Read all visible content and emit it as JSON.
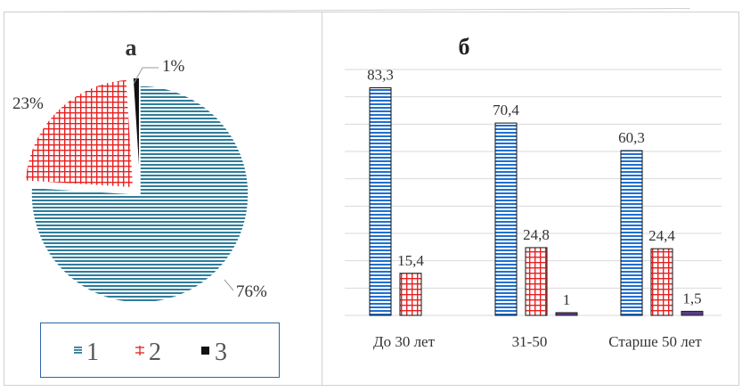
{
  "charts": [
    {
      "type": "pie",
      "title": "а",
      "categories": [
        "1",
        "2",
        "3"
      ],
      "values": [
        76,
        23,
        1
      ],
      "value_labels": [
        "76%",
        "23%",
        "1%"
      ],
      "legend": [
        "1",
        "2",
        "3"
      ],
      "legend_placement": "bottom",
      "colors": [
        "#2e7d9a",
        "#e82020",
        "#111111"
      ],
      "patterns": [
        "horizontal-lines",
        "grid",
        "solid"
      ]
    },
    {
      "type": "bar",
      "title": "б",
      "categories": [
        "До 30 лет",
        "31-50",
        "Старше 50 лет"
      ],
      "series": [
        {
          "values": [
            83.3,
            70.4,
            60.3
          ],
          "labels": [
            "83,3",
            "70,4",
            "60,3"
          ],
          "color": "#1f6fd0"
        },
        {
          "values": [
            15.4,
            24.8,
            24.4
          ],
          "labels": [
            "15,4",
            "24,8",
            "24,4"
          ],
          "color": "#e82020"
        },
        {
          "values": [
            0,
            1,
            1.5
          ],
          "labels": [
            "",
            "1",
            "1,5"
          ],
          "color": "#5b3a8a"
        }
      ],
      "ylim": [
        0,
        90
      ],
      "grid": true,
      "legend": "none"
    }
  ],
  "chart_data": [
    {
      "type": "pie",
      "title": "а",
      "categories": [
        "1",
        "2",
        "3"
      ],
      "values": [
        76,
        23,
        1
      ],
      "legend_placement": "bottom"
    },
    {
      "type": "bar",
      "title": "б",
      "categories": [
        "До 30 лет",
        "31-50",
        "Старше 50 лет"
      ],
      "series": [
        {
          "values": [
            83.3,
            70.4,
            60.3
          ]
        },
        {
          "values": [
            15.4,
            24.8,
            24.4
          ]
        },
        {
          "values": [
            0,
            1,
            1.5
          ]
        }
      ],
      "ylim": [
        0,
        90
      ],
      "grid": true
    }
  ]
}
